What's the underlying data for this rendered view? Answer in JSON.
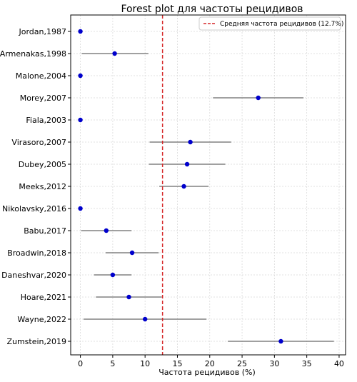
{
  "chart_data": {
    "type": "forest",
    "title": "Forest plot для частоты рецидивов",
    "xlabel": "Частота рецидивов (%)",
    "ylabel": "",
    "xlim": [
      -1.5,
      41
    ],
    "xticks": [
      0,
      5,
      10,
      15,
      20,
      25,
      30,
      35,
      40
    ],
    "grid": true,
    "legend_position": "top-right",
    "mean_line": {
      "value": 12.7,
      "label": "Средняя частота рецидивов (12.7%)",
      "color": "#d62728"
    },
    "point_color": "#0000cc",
    "ci_color": "#808080",
    "studies": [
      {
        "label": "Jordan,1987",
        "estimate": 0,
        "lower": null,
        "upper": null
      },
      {
        "label": "Armenakas,1998",
        "estimate": 5.3,
        "lower": 0.2,
        "upper": 10.5
      },
      {
        "label": "Malone,2004",
        "estimate": 0,
        "lower": null,
        "upper": null
      },
      {
        "label": "Morey,2007",
        "estimate": 27.5,
        "lower": 20.5,
        "upper": 34.5
      },
      {
        "label": "Fiala,2003",
        "estimate": 0,
        "lower": null,
        "upper": null
      },
      {
        "label": "Virasoro,2007",
        "estimate": 17.0,
        "lower": 10.7,
        "upper": 23.3
      },
      {
        "label": "Dubey,2005",
        "estimate": 16.5,
        "lower": 10.6,
        "upper": 22.4
      },
      {
        "label": "Meeks,2012",
        "estimate": 16.0,
        "lower": 12.2,
        "upper": 19.8
      },
      {
        "label": "Nikolavsky,2016",
        "estimate": 0,
        "lower": null,
        "upper": null
      },
      {
        "label": "Babu,2017",
        "estimate": 4.0,
        "lower": 0.1,
        "upper": 7.9
      },
      {
        "label": "Broadwin,2018",
        "estimate": 8.0,
        "lower": 3.9,
        "upper": 12.1
      },
      {
        "label": "Daneshvar,2020",
        "estimate": 5.0,
        "lower": 2.1,
        "upper": 7.9
      },
      {
        "label": "Hoare,2021",
        "estimate": 7.5,
        "lower": 2.4,
        "upper": 12.6
      },
      {
        "label": "Wayne,2022",
        "estimate": 10.0,
        "lower": 0.5,
        "upper": 19.5
      },
      {
        "label": "Zumstein,2019",
        "estimate": 31.0,
        "lower": 22.8,
        "upper": 39.2
      }
    ]
  }
}
